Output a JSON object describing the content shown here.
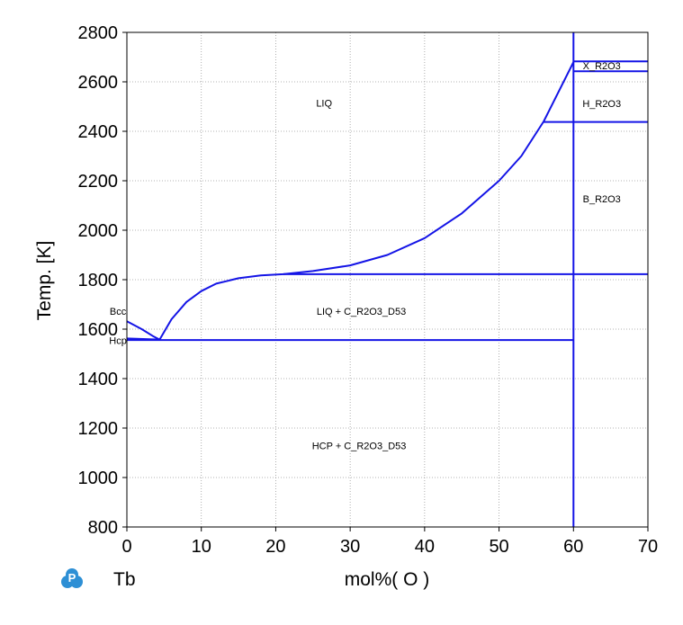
{
  "chart_data": {
    "type": "line",
    "xlabel": "mol%( O )",
    "ylabel": "Temp. [K]",
    "element": "Tb",
    "xlim": [
      0,
      70
    ],
    "ylim": [
      800,
      2800
    ],
    "xticks": [
      0,
      10,
      20,
      30,
      40,
      50,
      60,
      70
    ],
    "yticks": [
      800,
      1000,
      1200,
      1400,
      1600,
      1800,
      2000,
      2200,
      2400,
      2600,
      2800
    ],
    "grid": true,
    "line_color": "#1414e6",
    "region_labels": [
      {
        "text": "LIQ",
        "x": 26.5,
        "y": 2515
      },
      {
        "text": "X_R2O3",
        "x": 63.8,
        "y": 2665
      },
      {
        "text": "H_R2O3",
        "x": 63.8,
        "y": 2513
      },
      {
        "text": "B_R2O3",
        "x": 63.8,
        "y": 2128
      },
      {
        "text": "LIQ + C_R2O3_D53",
        "x": 31.5,
        "y": 1672
      },
      {
        "text": "Bcc",
        "x": -1.2,
        "y": 1672
      },
      {
        "text": "Hcp",
        "x": -1.2,
        "y": 1555
      },
      {
        "text": "HCP + C_R2O3_D53",
        "x": 31.2,
        "y": 1130
      }
    ],
    "series": [
      {
        "id": "liquidus-oxide",
        "points": [
          [
            4.4,
            1558
          ],
          [
            6,
            1640
          ],
          [
            8,
            1710
          ],
          [
            10,
            1754
          ],
          [
            12,
            1784
          ],
          [
            15,
            1806
          ],
          [
            18,
            1817
          ],
          [
            21,
            1822
          ],
          [
            25,
            1835
          ],
          [
            30,
            1858
          ],
          [
            35,
            1900
          ],
          [
            40,
            1968
          ],
          [
            45,
            2068
          ],
          [
            50,
            2200
          ],
          [
            53,
            2300
          ],
          [
            56,
            2440
          ],
          [
            60,
            2680
          ]
        ]
      },
      {
        "id": "liquidus-metal",
        "points": [
          [
            0,
            1632
          ],
          [
            2,
            1600
          ],
          [
            3.5,
            1572
          ],
          [
            4.4,
            1558
          ]
        ]
      },
      {
        "id": "bcc-hcp",
        "points": [
          [
            0,
            1562
          ],
          [
            4.4,
            1558
          ]
        ]
      },
      {
        "id": "eutectic",
        "points": [
          [
            0,
            1556
          ],
          [
            59.9,
            1556
          ]
        ]
      },
      {
        "id": "monotectic",
        "points": [
          [
            21,
            1822
          ],
          [
            70,
            1822
          ]
        ]
      },
      {
        "id": "h-b-transition",
        "points": [
          [
            56,
            2438
          ],
          [
            70,
            2438
          ]
        ]
      },
      {
        "id": "x-h-transition",
        "points": [
          [
            60,
            2643
          ],
          [
            70,
            2643
          ]
        ]
      },
      {
        "id": "x-liq-boundary",
        "points": [
          [
            60,
            2683
          ],
          [
            70,
            2683
          ]
        ]
      },
      {
        "id": "r2o3-line",
        "points": [
          [
            60,
            800
          ],
          [
            60,
            2800
          ]
        ]
      }
    ]
  }
}
